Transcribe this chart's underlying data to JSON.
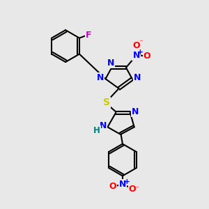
{
  "bg_color": "#e8e8e8",
  "atom_colors": {
    "C": "#000000",
    "N": "#0000ff",
    "O": "#ff0000",
    "S": "#cccc00",
    "F": "#cc00cc",
    "H": "#008080",
    "bond": "#000000"
  },
  "figsize": [
    3.0,
    3.0
  ],
  "dpi": 100
}
